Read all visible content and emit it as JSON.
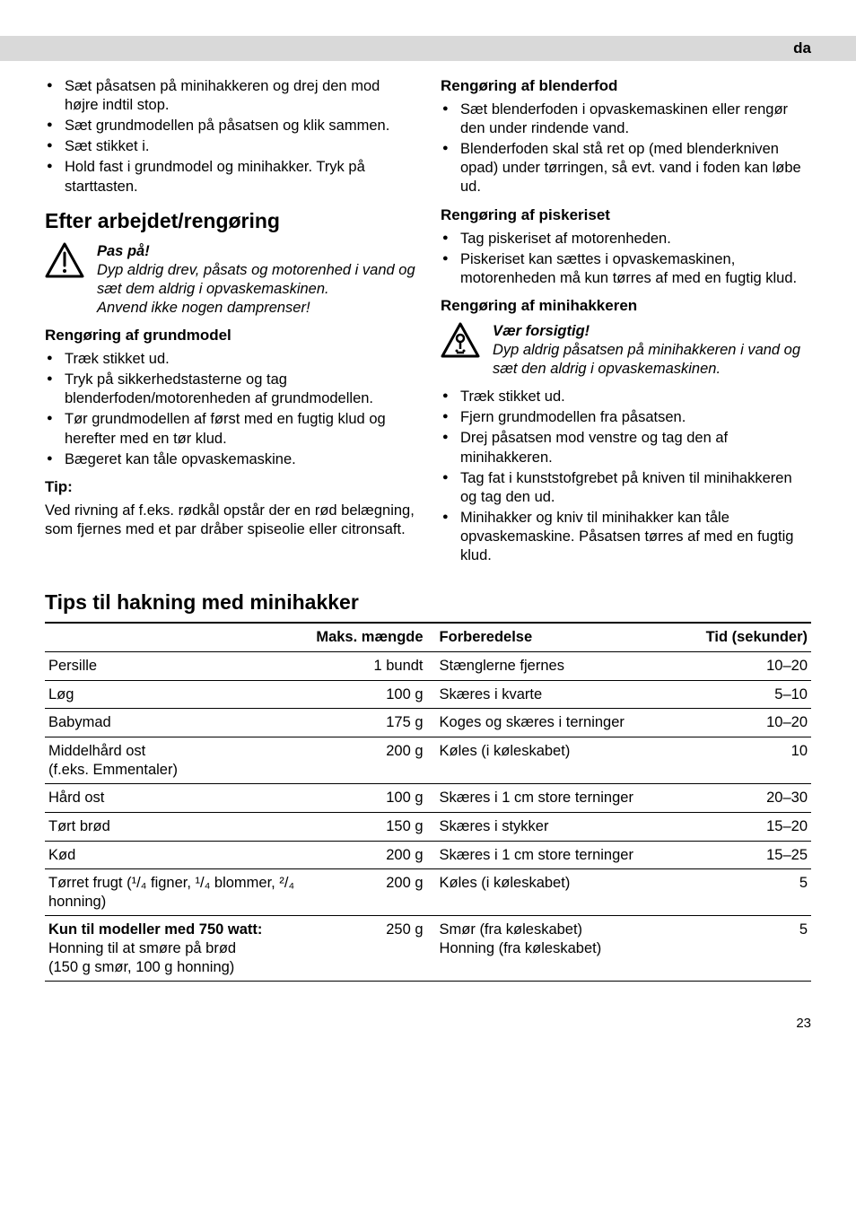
{
  "lang_code": "da",
  "left": {
    "intro_bullets": [
      "Sæt påsatsen på minihakkeren og drej den mod højre indtil stop.",
      "Sæt grundmodellen på påsatsen og klik sammen.",
      "Sæt stikket i.",
      "Hold fast i grundmodel og minihakker. Tryk på starttasten."
    ],
    "h2_after": "Efter arbejdet/rengøring",
    "warn": {
      "title": "Pas på!",
      "body": "Dyp aldrig drev, påsats og motorenhed i vand og sæt dem aldrig i opvaskemaskinen.\nAnvend ikke nogen damprenser!"
    },
    "h3_grund": "Rengøring af grundmodel",
    "grund_bullets": [
      "Træk stikket ud.",
      "Tryk på sikkerhedstasterne og tag blenderfoden/motorenheden af grundmodellen.",
      "Tør grundmodellen af først med en fugtig klud og herefter med en tør klud.",
      "Bægeret kan tåle opvaskemaskine."
    ],
    "tip_h": "Tip:",
    "tip_body": "Ved rivning af f.eks. rødkål opstår der en rød belægning, som fjernes med et par dråber spiseolie eller citronsaft."
  },
  "right": {
    "h3_blenderfod": "Rengøring af blenderfod",
    "blenderfod_bullets": [
      "Sæt blenderfoden i opvaskemaskinen eller rengør den under rindende vand.",
      "Blenderfoden skal stå ret op (med blenderkniven opad) under tørringen, så evt. vand i foden kan løbe ud."
    ],
    "h3_piskeriset": "Rengøring af piskeriset",
    "piskeriset_bullets": [
      "Tag piskeriset af motorenheden.",
      "Piskeriset kan sættes i opvaskemaskinen, motorenheden må kun tørres af med en fugtig klud."
    ],
    "h3_minihak": "Rengøring af minihakkeren",
    "warn": {
      "title": "Vær forsigtig!",
      "body": "Dyp aldrig påsatsen på minihakkeren i vand og sæt den aldrig i opvaskemaskinen."
    },
    "minihak_bullets": [
      "Træk stikket ud.",
      "Fjern grundmodellen fra påsatsen.",
      "Drej påsatsen mod venstre og tag den af minihakkeren.",
      "Tag fat i kunststofgrebet på kniven til minihakkeren og tag den ud.",
      "Minihakker og kniv til minihakker kan tåle opvaskemaskine. Påsatsen tørres af med en fugtig klud."
    ]
  },
  "tips_heading": "Tips til hakning med minihakker",
  "table": {
    "columns": [
      "",
      "Maks. mængde",
      "Forberedelse",
      "Tid (sekunder)"
    ],
    "rows": [
      {
        "name": "Persille",
        "amt": "1 bundt",
        "prep": "Stænglerne fjernes",
        "time": "10–20"
      },
      {
        "name": "Løg",
        "amt": "100 g",
        "prep": "Skæres i kvarte",
        "time": "5–10"
      },
      {
        "name": "Babymad",
        "amt": "175 g",
        "prep": "Koges og skæres i terninger",
        "time": "10–20"
      },
      {
        "name": "Middelhård ost\n(f.eks. Emmentaler)",
        "amt": "200 g",
        "prep": "Køles (i køleskabet)",
        "time": "10"
      },
      {
        "name": "Hård ost",
        "amt": "100 g",
        "prep": "Skæres i 1 cm store terninger",
        "time": "20–30"
      },
      {
        "name": "Tørt brød",
        "amt": "150 g",
        "prep": "Skæres i stykker",
        "time": "15–20"
      },
      {
        "name": "Kød",
        "amt": "200 g",
        "prep": "Skæres i 1 cm store terninger",
        "time": "15–25"
      },
      {
        "name": "Tørret frugt (¹/₄ figner, ¹/₄ blommer, ²/₄ honning)",
        "amt": "200 g",
        "prep": "Køles (i køleskabet)",
        "time": "5"
      },
      {
        "name_bold": "Kun til modeller med 750 watt:",
        "name_rest": "Honning til at smøre på brød\n(150 g smør, 100 g honning)",
        "amt": "250 g",
        "prep": "Smør (fra køleskabet)\nHonning (fra køleskabet)",
        "time": "5"
      }
    ]
  },
  "page_number": "23"
}
